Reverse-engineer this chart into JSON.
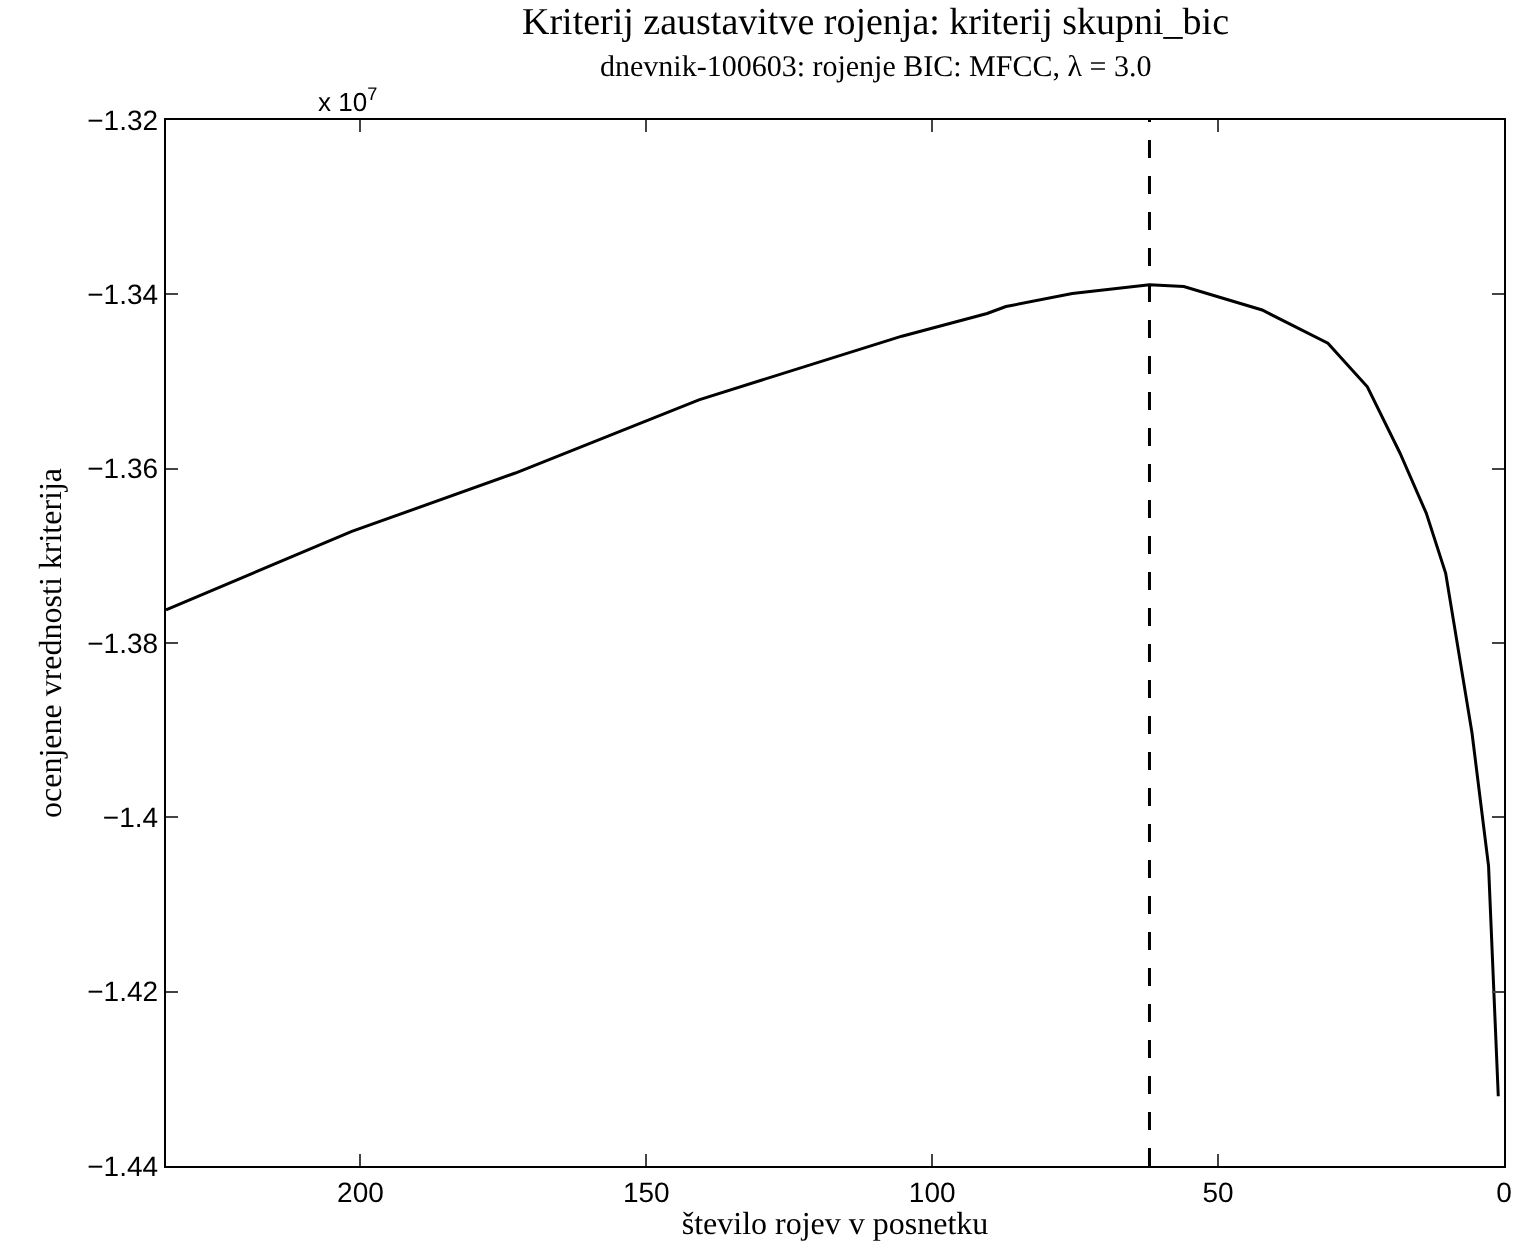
{
  "chart_data": {
    "type": "line",
    "title": "Kriterij zaustavitve rojenja: kriterij skupni_bic",
    "subtitle": "dnevnik-100603: rojenje BIC: MFCC, λ = 3.0",
    "xlabel": "število rojev v posnetku",
    "ylabel": "ocenjene vrednosti kriterija",
    "annotations": [
      "x 10$^{7}$"
    ],
    "series": [
      {
        "color": "#000000",
        "x": [
          234,
          201.5,
          172.9,
          140.8,
          105.3,
          90.4,
          87.1,
          75.5,
          62,
          56,
          42.3,
          30.8,
          23.9,
          18.2,
          13.6,
          10.2,
          5.6,
          2.7,
          1
        ],
        "values": [
          -1.3762,
          -1.3672,
          -1.3605,
          -1.3521,
          -1.3448,
          -1.3422,
          -1.3414,
          -1.3399,
          -1.3389,
          -1.3391,
          -1.3418,
          -1.3456,
          -1.3506,
          -1.3582,
          -1.3651,
          -1.372,
          -1.3903,
          -1.4056,
          -1.432
        ]
      }
    ],
    "xlim": [
      234,
      0
    ],
    "xticks": [
      200,
      150,
      100,
      50,
      0
    ],
    "ylim": [
      -1.44,
      -1.32
    ],
    "yticks": [
      {
        "value": -1.44,
        "label": "−1.44"
      },
      {
        "value": -1.42,
        "label": "−1.42"
      },
      {
        "value": -1.4,
        "label": "−1.4"
      },
      {
        "value": -1.38,
        "label": "−1.38"
      },
      {
        "value": -1.36,
        "label": "−1.36"
      },
      {
        "value": -1.34,
        "label": "−1.34"
      },
      {
        "value": -1.32,
        "label": "−1.32"
      }
    ],
    "ref_lines": [
      {
        "axis": "x",
        "value": 62,
        "color": "#000000",
        "line_style": "dashed"
      }
    ],
    "grid": false,
    "marker": "none",
    "line_style": "solid"
  }
}
